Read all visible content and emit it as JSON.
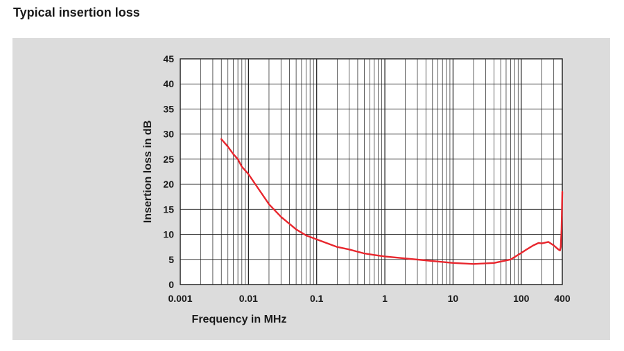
{
  "page": {
    "title": "Typical insertion loss"
  },
  "colors": {
    "panel_background": "#dcdcdc",
    "plot_background": "#ffffff",
    "grid": "#1a1a1a",
    "series": "#e8262d"
  },
  "chart_data": {
    "type": "line",
    "title": "",
    "xlabel": "Frequency in MHz",
    "ylabel": "Insertion loss in dB",
    "x_scale": "log",
    "xlim": [
      0.001,
      400
    ],
    "ylim": [
      0,
      45
    ],
    "x_ticks": [
      0.001,
      0.01,
      0.1,
      1,
      10,
      100,
      400
    ],
    "x_tick_labels": [
      "0.001",
      "0.01",
      "0.1",
      "1",
      "10",
      "100",
      "400"
    ],
    "y_ticks": [
      0,
      5,
      10,
      15,
      20,
      25,
      30,
      35,
      40,
      45
    ],
    "y_tick_labels": [
      "0",
      "5",
      "10",
      "15",
      "20",
      "25",
      "30",
      "35",
      "40",
      "45"
    ],
    "grid": true,
    "series": [
      {
        "x": [
          0.004,
          0.005,
          0.006,
          0.007,
          0.008,
          0.01,
          0.015,
          0.02,
          0.03,
          0.05,
          0.07,
          0.1,
          0.2,
          0.3,
          0.5,
          0.7,
          1,
          2,
          5,
          10,
          20,
          40,
          70,
          100,
          120,
          150,
          180,
          200,
          250,
          300,
          350,
          370,
          380,
          390,
          400
        ],
        "y": [
          29,
          27.5,
          26,
          25,
          23.5,
          22,
          18.5,
          16,
          13.5,
          11,
          9.8,
          9,
          7.5,
          7,
          6.2,
          5.9,
          5.6,
          5.2,
          4.7,
          4.3,
          4.1,
          4.3,
          5,
          6.3,
          7,
          7.8,
          8.3,
          8.2,
          8.5,
          7.8,
          7,
          6.8,
          7.5,
          11,
          18.5
        ]
      }
    ]
  }
}
